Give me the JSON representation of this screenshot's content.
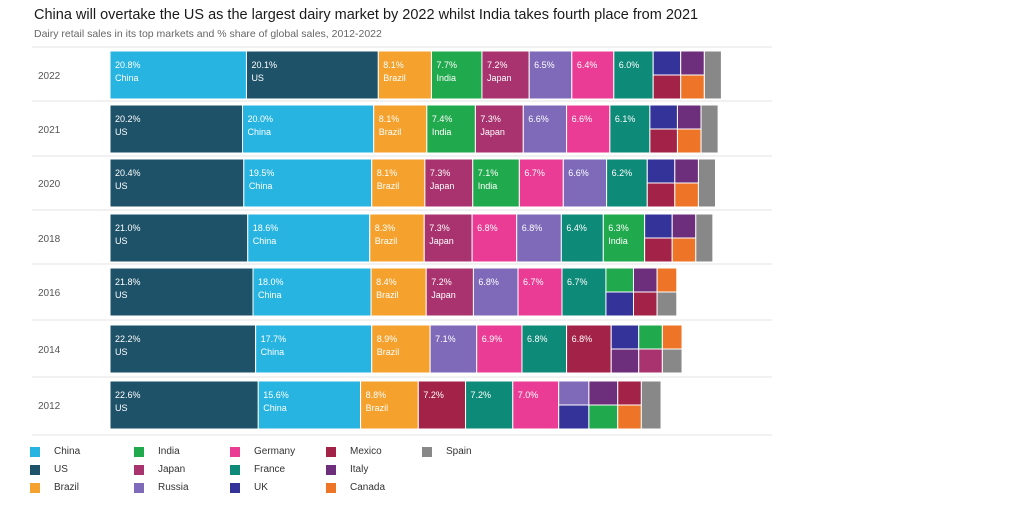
{
  "title": "China will overtake the US as the largest dairy market by 2022 whilst India takes fourth place from 2021",
  "subtitle": "Dairy retail sales in its top markets and % share of global sales, 2012-2022",
  "colors": {
    "China": "#27b4e1",
    "US": "#1e5268",
    "Brazil": "#f4a22d",
    "India": "#21a94d",
    "Japan": "#a8336f",
    "Russia": "#7e6ab9",
    "Germany": "#ea3c94",
    "France": "#0e8a78",
    "UK": "#33339a",
    "Mexico": "#a32248",
    "Italy": "#6d2e7c",
    "Canada": "#ee7427",
    "Spain": "#888888"
  },
  "chart_data": {
    "type": "bar",
    "stacked": true,
    "orientation": "horizontal",
    "title": "China will overtake the US as the largest dairy market by 2022 whilst India takes fourth place from 2021",
    "subtitle": "Dairy retail sales in its top markets and % share of global sales, 2012-2022",
    "unit": "% share of global sales",
    "legend_position": "bottom",
    "rows": [
      {
        "year": "2022",
        "segments": [
          {
            "country": "China",
            "value": 20.8,
            "label": "20.8%"
          },
          {
            "country": "US",
            "value": 20.1,
            "label": "20.1%"
          },
          {
            "country": "Brazil",
            "value": 8.1,
            "label": "8.1%"
          },
          {
            "country": "India",
            "value": 7.7,
            "label": "7.7%"
          },
          {
            "country": "Japan",
            "value": 7.2,
            "label": "7.2%"
          },
          {
            "country": "Russia",
            "value": 6.5,
            "label": "6.5%"
          },
          {
            "country": "Germany",
            "value": 6.4,
            "label": "6.4%"
          },
          {
            "country": "France",
            "value": 6.0,
            "label": "6.0%"
          },
          {
            "country": "UK",
            "value": 4.2
          },
          {
            "country": "Mexico",
            "value": 4.2
          },
          {
            "country": "Italy",
            "value": 3.6
          },
          {
            "country": "Canada",
            "value": 3.6
          },
          {
            "country": "Spain",
            "value": 2.6
          }
        ]
      },
      {
        "year": "2021",
        "segments": [
          {
            "country": "US",
            "value": 20.2,
            "label": "20.2%"
          },
          {
            "country": "China",
            "value": 20.0,
            "label": "20.0%"
          },
          {
            "country": "Brazil",
            "value": 8.1,
            "label": "8.1%"
          },
          {
            "country": "India",
            "value": 7.4,
            "label": "7.4%"
          },
          {
            "country": "Japan",
            "value": 7.3,
            "label": "7.3%"
          },
          {
            "country": "Russia",
            "value": 6.6,
            "label": "6.6%"
          },
          {
            "country": "Germany",
            "value": 6.6,
            "label": "6.6%"
          },
          {
            "country": "France",
            "value": 6.1,
            "label": "6.1%"
          },
          {
            "country": "UK",
            "value": 4.2
          },
          {
            "country": "Mexico",
            "value": 4.2
          },
          {
            "country": "Italy",
            "value": 3.6
          },
          {
            "country": "Canada",
            "value": 3.6
          },
          {
            "country": "Spain",
            "value": 2.6
          }
        ]
      },
      {
        "year": "2020",
        "segments": [
          {
            "country": "US",
            "value": 20.4,
            "label": "20.4%"
          },
          {
            "country": "China",
            "value": 19.5,
            "label": "19.5%"
          },
          {
            "country": "Brazil",
            "value": 8.1,
            "label": "8.1%"
          },
          {
            "country": "Japan",
            "value": 7.3,
            "label": "7.3%"
          },
          {
            "country": "India",
            "value": 7.1,
            "label": "7.1%"
          },
          {
            "country": "Germany",
            "value": 6.7,
            "label": "6.7%"
          },
          {
            "country": "Russia",
            "value": 6.6,
            "label": "6.6%"
          },
          {
            "country": "France",
            "value": 6.2,
            "label": "6.2%"
          },
          {
            "country": "UK",
            "value": 4.2
          },
          {
            "country": "Mexico",
            "value": 4.2
          },
          {
            "country": "Italy",
            "value": 3.6
          },
          {
            "country": "Canada",
            "value": 3.6
          },
          {
            "country": "Spain",
            "value": 2.6
          }
        ]
      },
      {
        "year": "2018",
        "segments": [
          {
            "country": "US",
            "value": 21.0,
            "label": "21.0%"
          },
          {
            "country": "China",
            "value": 18.6,
            "label": "18.6%"
          },
          {
            "country": "Brazil",
            "value": 8.3,
            "label": "8.3%"
          },
          {
            "country": "Japan",
            "value": 7.3,
            "label": "7.3%"
          },
          {
            "country": "Germany",
            "value": 6.8,
            "label": "6.8%"
          },
          {
            "country": "Russia",
            "value": 6.8,
            "label": "6.8%"
          },
          {
            "country": "France",
            "value": 6.4,
            "label": "6.4%"
          },
          {
            "country": "India",
            "value": 6.3,
            "label": "6.3%"
          },
          {
            "country": "UK",
            "value": 4.2
          },
          {
            "country": "Mexico",
            "value": 4.2
          },
          {
            "country": "Italy",
            "value": 3.6
          },
          {
            "country": "Canada",
            "value": 3.6
          },
          {
            "country": "Spain",
            "value": 2.6
          }
        ]
      },
      {
        "year": "2016",
        "segments": [
          {
            "country": "US",
            "value": 21.8,
            "label": "21.8%"
          },
          {
            "country": "China",
            "value": 18.0,
            "label": "18.0%"
          },
          {
            "country": "Brazil",
            "value": 8.4,
            "label": "8.4%"
          },
          {
            "country": "Japan",
            "value": 7.2,
            "label": "7.2%"
          },
          {
            "country": "Russia",
            "value": 6.8,
            "label": "6.8%"
          },
          {
            "country": "Germany",
            "value": 6.7,
            "label": "6.7%"
          },
          {
            "country": "France",
            "value": 6.7,
            "label": "6.7%"
          },
          {
            "country": "India",
            "value": 4.2
          },
          {
            "country": "UK",
            "value": 4.2
          },
          {
            "country": "Italy",
            "value": 3.6
          },
          {
            "country": "Mexico",
            "value": 3.6
          },
          {
            "country": "Canada",
            "value": 3.0
          },
          {
            "country": "Spain",
            "value": 2.6
          }
        ]
      },
      {
        "year": "2014",
        "segments": [
          {
            "country": "US",
            "value": 22.2,
            "label": "22.2%"
          },
          {
            "country": "China",
            "value": 17.7,
            "label": "17.7%"
          },
          {
            "country": "Brazil",
            "value": 8.9,
            "label": "8.9%"
          },
          {
            "country": "Russia",
            "value": 7.1,
            "label": "7.1%"
          },
          {
            "country": "Germany",
            "value": 6.9,
            "label": "6.9%"
          },
          {
            "country": "France",
            "value": 6.8,
            "label": "6.8%"
          },
          {
            "country": "Mexico",
            "value": 6.8,
            "label": "6.8%"
          },
          {
            "country": "UK",
            "value": 4.2
          },
          {
            "country": "Italy",
            "value": 4.2
          },
          {
            "country": "India",
            "value": 3.6
          },
          {
            "country": "Japan",
            "value": 3.6
          },
          {
            "country": "Canada",
            "value": 3.0
          },
          {
            "country": "Spain",
            "value": 2.6
          }
        ]
      },
      {
        "year": "2012",
        "segments": [
          {
            "country": "US",
            "value": 22.6,
            "label": "22.6%"
          },
          {
            "country": "China",
            "value": 15.6,
            "label": "15.6%"
          },
          {
            "country": "Brazil",
            "value": 8.8,
            "label": "8.8%"
          },
          {
            "country": "Mexico",
            "value": 7.2,
            "label": "7.2%"
          },
          {
            "country": "France",
            "value": 7.2,
            "label": "7.2%"
          },
          {
            "country": "Germany",
            "value": 7.0,
            "label": "7.0%"
          },
          {
            "country": "Russia",
            "value": 4.6
          },
          {
            "country": "UK",
            "value": 4.6
          },
          {
            "country": "Italy",
            "value": 4.4
          },
          {
            "country": "India",
            "value": 4.4
          },
          {
            "country": "Mexico",
            "value": 3.6
          },
          {
            "country": "Canada",
            "value": 3.6
          },
          {
            "country": "Spain",
            "value": 3.0
          }
        ]
      }
    ],
    "legend": [
      [
        "China",
        "US",
        "Brazil"
      ],
      [
        "India",
        "Japan",
        "Russia"
      ],
      [
        "Germany",
        "France",
        "UK"
      ],
      [
        "Mexico",
        "Italy",
        "Canada"
      ],
      [
        "Spain"
      ]
    ]
  }
}
